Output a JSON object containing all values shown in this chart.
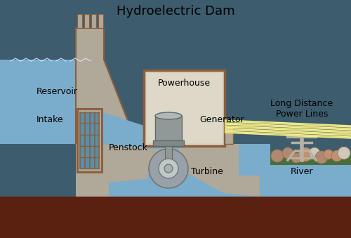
{
  "title": "Hydroelectric Dam",
  "title_fontsize": 13,
  "bg_color": "#3d5c6e",
  "dam_color": "#b0a898",
  "dam_outline": "#8b5e3c",
  "water_color": "#7aaccc",
  "water_dark": "#5a8faa",
  "ground_color": "#5a2010",
  "powerhouse_color": "#d8d0c0",
  "powerhouse_outline": "#8b5e3c",
  "generator_color": "#909898",
  "turbine_color": "#9aa0a8",
  "power_line_color": "#f8f090",
  "power_line_outline": "#c8c860",
  "tower_color": "#b8b0a0",
  "tower_outline": "#8b5e3c",
  "rock_color_1": "#c09070",
  "rock_color_2": "#d0c8b8",
  "rock_color_3": "#b08870",
  "veg_color": "#4a6e3a",
  "labels": {
    "reservoir": "Reservoir",
    "intake": "Intake",
    "penstock": "Penstock",
    "powerhouse": "Powerhouse",
    "generator": "Generator",
    "turbine": "Turbine",
    "river": "River",
    "power_lines": "Long Distance\nPower Lines"
  },
  "label_fontsize": 9,
  "fig_width": 5.0,
  "fig_height": 3.39,
  "dpi": 100
}
